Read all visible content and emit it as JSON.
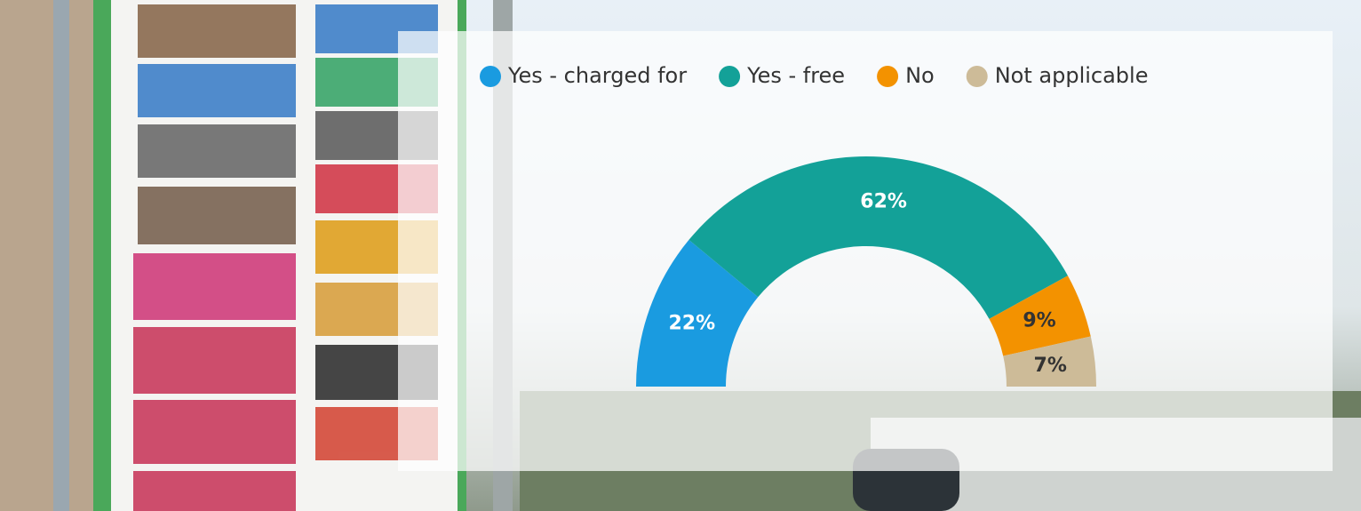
{
  "chart_data": {
    "type": "pie",
    "semicircle": true,
    "categories": [
      "Yes - charged for",
      "Yes - free",
      "No",
      "Not applicable"
    ],
    "values": [
      22,
      62,
      9,
      7
    ],
    "value_labels": [
      "22%",
      "62%",
      "9%",
      "7%"
    ],
    "colors": [
      "#1a9be0",
      "#13a198",
      "#f39200",
      "#cdbb98"
    ],
    "label_colors": [
      "#ffffff",
      "#ffffff",
      "#333333",
      "#333333"
    ],
    "legend": "top"
  }
}
